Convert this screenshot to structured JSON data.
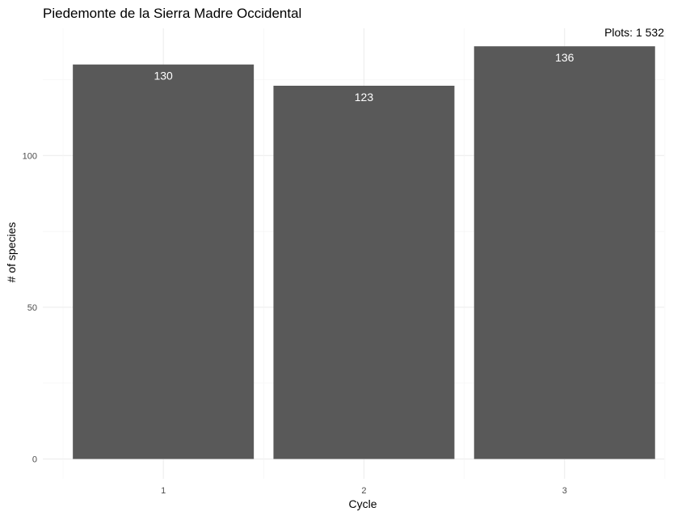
{
  "chart_data": {
    "type": "bar",
    "title": "Piedemonte de la Sierra Madre Occidental",
    "annotation": "Plots: 1 532",
    "xlabel": "Cycle",
    "ylabel": "# of species",
    "categories": [
      "1",
      "2",
      "3"
    ],
    "values": [
      130,
      123,
      136
    ],
    "data_labels": [
      "130",
      "123",
      "136"
    ],
    "yticks": [
      0,
      50,
      100
    ],
    "ytick_labels": [
      "0",
      "50",
      "100"
    ],
    "ylim": [
      0,
      136
    ],
    "bar_color": "#595959",
    "grid": true,
    "legend": "none"
  }
}
